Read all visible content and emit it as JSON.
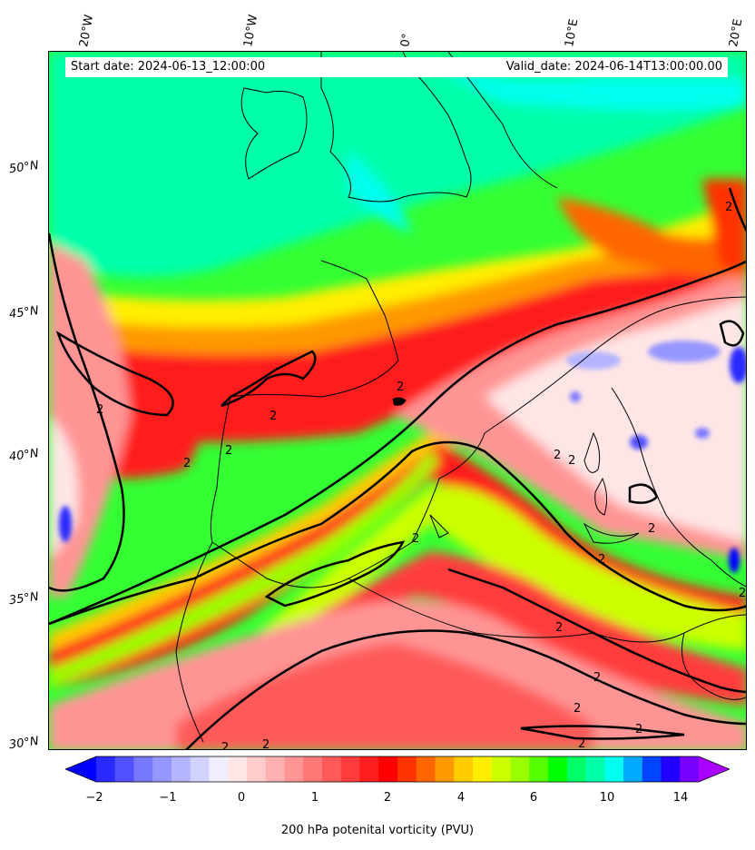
{
  "header": {
    "start_date": "Start date: 2024-06-13_12:00:00",
    "valid_date": "Valid_date: 2024-06-14T13:00:00.00"
  },
  "axes": {
    "longitudes": [
      "20°W",
      "10°W",
      "0°",
      "10°E",
      "20°E"
    ],
    "latitudes": [
      "50°N",
      "45°N",
      "40°N",
      "35°N",
      "30°N"
    ]
  },
  "colorbar": {
    "label": "200 hPa potenital vorticity (PVU)",
    "tick_labels": [
      "−2",
      "−1",
      "0",
      "1",
      "2",
      "4",
      "6",
      "10",
      "14"
    ],
    "colors": [
      "#0000ff",
      "#2a2aff",
      "#5050ff",
      "#7878ff",
      "#9696ff",
      "#b4b4ff",
      "#d2d2ff",
      "#eeeeff",
      "#ffe6e6",
      "#ffcccc",
      "#ffb0b0",
      "#ff9494",
      "#ff7878",
      "#ff5a5a",
      "#ff3c3c",
      "#ff1e1e",
      "#ff0000",
      "#ff3300",
      "#ff6600",
      "#ff9900",
      "#ffcc00",
      "#ffee00",
      "#ccff00",
      "#99ff00",
      "#55ff00",
      "#00ff00",
      "#00ff66",
      "#00ffaa",
      "#00ffee",
      "#00aaff",
      "#0044ff",
      "#2200ff",
      "#7700ff",
      "#aa00ff"
    ]
  },
  "map_colors": {
    "ocean_green": "#33ff33",
    "teal": "#00ffaa",
    "cyan": "#00ffee",
    "yellow": "#ffee00",
    "orange": "#ff9900",
    "red": "#ff1e1e",
    "pink": "#ff9494",
    "light": "#ffe6e6",
    "blue": "#5050ff"
  },
  "contour_label": "2"
}
